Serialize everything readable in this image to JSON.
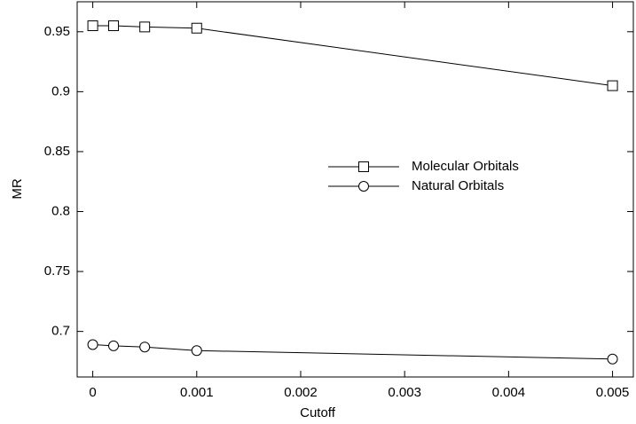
{
  "chart_data": {
    "type": "line",
    "xlabel": "Cutoff",
    "ylabel": "MR",
    "x": [
      0,
      0.0002,
      0.0005,
      0.001,
      0.005
    ],
    "series": [
      {
        "name": "Molecular Orbitals",
        "color": "#000000",
        "marker": "square",
        "values": [
          0.955,
          0.955,
          0.954,
          0.953,
          0.905
        ]
      },
      {
        "name": "Natural Orbitals",
        "color": "#000000",
        "marker": "circle",
        "values": [
          0.689,
          0.688,
          0.687,
          0.684,
          0.677
        ]
      }
    ],
    "xlim": [
      -0.00015,
      0.0052
    ],
    "xticks": [
      0,
      0.001,
      0.002,
      0.003,
      0.004,
      0.005
    ],
    "ylim": [
      0.662,
      0.975
    ],
    "yticks": [
      0.7,
      0.75,
      0.8,
      0.85,
      0.9,
      0.95
    ],
    "grid": false,
    "legend": "center"
  }
}
